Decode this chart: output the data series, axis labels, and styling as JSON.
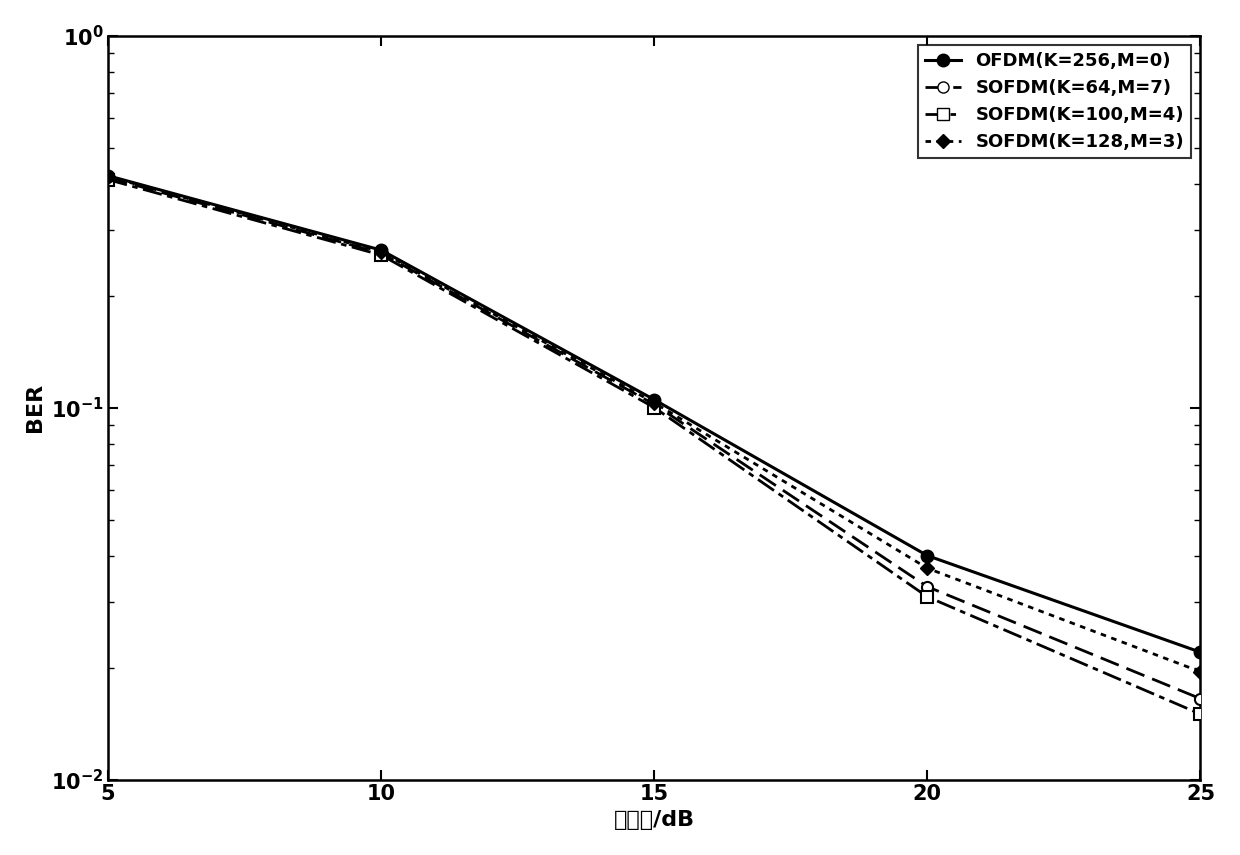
{
  "snr": [
    5,
    10,
    15,
    20,
    25
  ],
  "ofdm": [
    0.42,
    0.265,
    0.105,
    0.04,
    0.022
  ],
  "sofdm_64": [
    0.415,
    0.26,
    0.102,
    0.033,
    0.0165
  ],
  "sofdm_100": [
    0.41,
    0.257,
    0.1,
    0.031,
    0.015
  ],
  "sofdm_128": [
    0.418,
    0.262,
    0.103,
    0.037,
    0.0195
  ],
  "legend_labels": [
    "OFDM(K=256,M=0)",
    "SOFDM(K=64,M=7)",
    "SOFDM(K=100,M=4)",
    "SOFDM(K=128,M=3)"
  ],
  "xlabel": "信噪比/dB",
  "ylabel": "BER",
  "xlim": [
    5,
    25
  ],
  "ylim": [
    0.01,
    1.0
  ],
  "xticks": [
    5,
    10,
    15,
    20,
    25
  ],
  "legend_loc": "upper right",
  "fontsize": 16,
  "tick_fontsize": 15,
  "legend_fontsize": 13,
  "lw_solid": 2.2,
  "lw_other": 2.0,
  "ms_solid": 9,
  "ms_other": 8
}
